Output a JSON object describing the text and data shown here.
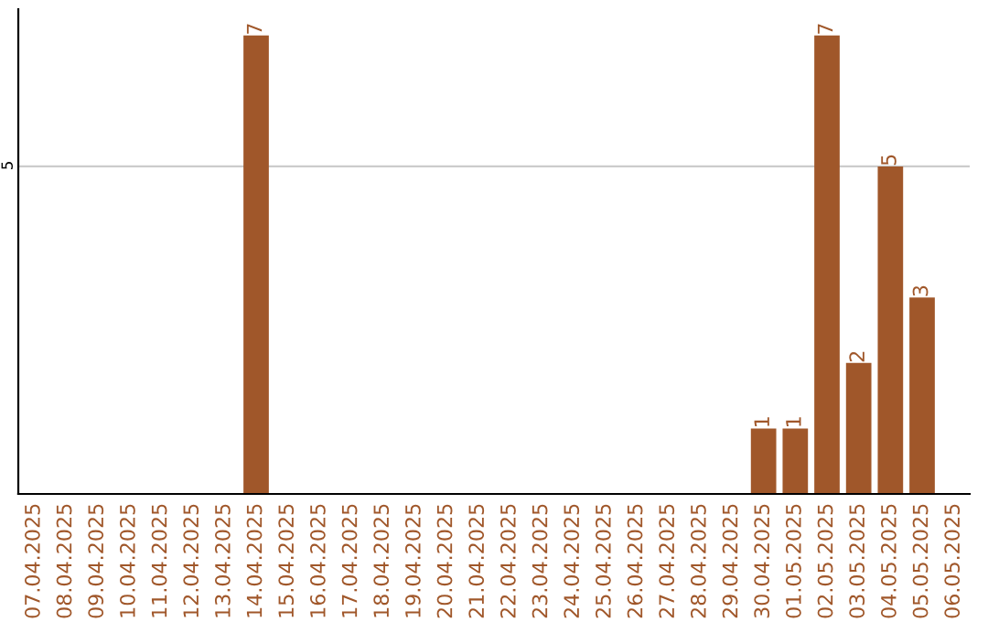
{
  "chart_data": {
    "type": "bar",
    "categories": [
      "07.04.2025",
      "08.04.2025",
      "09.04.2025",
      "10.04.2025",
      "11.04.2025",
      "12.04.2025",
      "13.04.2025",
      "14.04.2025",
      "15.04.2025",
      "16.04.2025",
      "17.04.2025",
      "18.04.2025",
      "19.04.2025",
      "20.04.2025",
      "21.04.2025",
      "22.04.2025",
      "23.04.2025",
      "24.04.2025",
      "25.04.2025",
      "26.04.2025",
      "27.04.2025",
      "28.04.2025",
      "29.04.2025",
      "30.04.2025",
      "01.05.2025",
      "02.05.2025",
      "03.05.2025",
      "04.05.2025",
      "05.05.2025",
      "06.05.2025"
    ],
    "values": [
      0,
      0,
      0,
      0,
      0,
      0,
      0,
      7,
      0,
      0,
      0,
      0,
      0,
      0,
      0,
      0,
      0,
      0,
      0,
      0,
      0,
      0,
      0,
      1,
      1,
      7,
      2,
      5,
      3,
      0
    ],
    "value_labels": [
      null,
      null,
      null,
      null,
      null,
      null,
      null,
      "7",
      null,
      null,
      null,
      null,
      null,
      null,
      null,
      null,
      null,
      null,
      null,
      null,
      null,
      null,
      null,
      "1",
      "1",
      "7",
      "2",
      "5",
      "3",
      null
    ],
    "color": "#a0572a",
    "ylim": [
      0,
      7.4
    ],
    "yticks": [
      5
    ],
    "grid": "y",
    "legend": false
  }
}
